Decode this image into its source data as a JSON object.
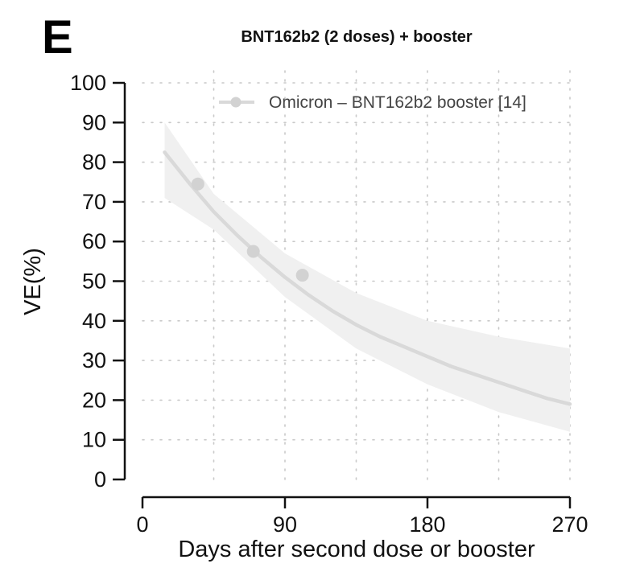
{
  "panel_label": "E",
  "chart_data": {
    "type": "line",
    "title": "BNT162b2 (2 doses) + booster",
    "xlabel": "Days after second dose or booster",
    "ylabel": "VE(%)",
    "xlim": [
      0,
      270
    ],
    "ylim": [
      0,
      100
    ],
    "x_ticks": [
      0,
      90,
      180,
      270
    ],
    "y_ticks": [
      0,
      10,
      20,
      30,
      40,
      50,
      60,
      70,
      80,
      90,
      100
    ],
    "grid": true,
    "legend_position": "top-right",
    "colors": {
      "line": "#d9d9d9",
      "points": "#d2d2d2",
      "band": "#f0f0f0"
    },
    "series": [
      {
        "name": "Omicron – BNT162b2 booster [14]",
        "points": [
          {
            "x": 35,
            "y": 74.5
          },
          {
            "x": 70,
            "y": 57.5
          },
          {
            "x": 101,
            "y": 51.5
          }
        ],
        "fit": [
          {
            "x": 14,
            "y": 82.5
          },
          {
            "x": 30,
            "y": 74.5
          },
          {
            "x": 45,
            "y": 67.5
          },
          {
            "x": 60,
            "y": 61.5
          },
          {
            "x": 75,
            "y": 56
          },
          {
            "x": 90,
            "y": 51
          },
          {
            "x": 105,
            "y": 46.5
          },
          {
            "x": 120,
            "y": 42.5
          },
          {
            "x": 135,
            "y": 39
          },
          {
            "x": 150,
            "y": 36
          },
          {
            "x": 165,
            "y": 33.5
          },
          {
            "x": 180,
            "y": 31
          },
          {
            "x": 195,
            "y": 28.5
          },
          {
            "x": 210,
            "y": 26.5
          },
          {
            "x": 225,
            "y": 24.5
          },
          {
            "x": 240,
            "y": 22.5
          },
          {
            "x": 255,
            "y": 20.5
          },
          {
            "x": 270,
            "y": 19
          }
        ],
        "ci_upper": [
          {
            "x": 14,
            "y": 90
          },
          {
            "x": 45,
            "y": 72
          },
          {
            "x": 90,
            "y": 57
          },
          {
            "x": 135,
            "y": 47
          },
          {
            "x": 180,
            "y": 40
          },
          {
            "x": 225,
            "y": 36
          },
          {
            "x": 270,
            "y": 33
          }
        ],
        "ci_lower": [
          {
            "x": 14,
            "y": 71
          },
          {
            "x": 45,
            "y": 63
          },
          {
            "x": 90,
            "y": 46
          },
          {
            "x": 135,
            "y": 33
          },
          {
            "x": 180,
            "y": 24
          },
          {
            "x": 225,
            "y": 17
          },
          {
            "x": 270,
            "y": 12
          }
        ]
      }
    ]
  }
}
